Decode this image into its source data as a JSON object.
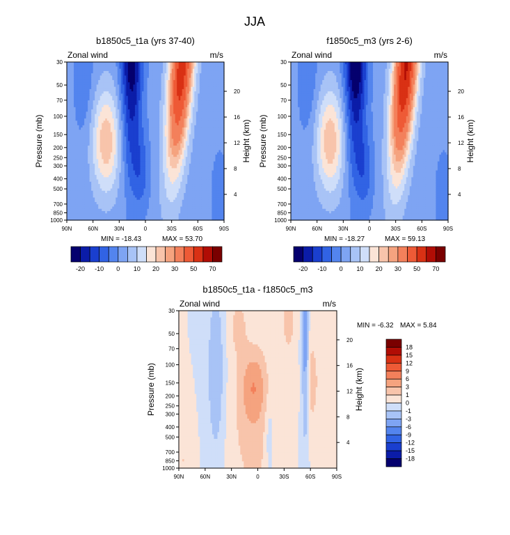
{
  "figure": {
    "title": "JJA",
    "xticklabels": [
      "90N",
      "60N",
      "30N",
      "0",
      "30S",
      "60S",
      "90S"
    ],
    "pressure_ticks": [
      {
        "p": 30,
        "label": "30"
      },
      {
        "p": 50,
        "label": "50"
      },
      {
        "p": 70,
        "label": "70"
      },
      {
        "p": 100,
        "label": "100"
      },
      {
        "p": 150,
        "label": "150"
      },
      {
        "p": 200,
        "label": "200"
      },
      {
        "p": 250,
        "label": "250"
      },
      {
        "p": 300,
        "label": "300"
      },
      {
        "p": 400,
        "label": "400"
      },
      {
        "p": 500,
        "label": "500"
      },
      {
        "p": 700,
        "label": "700"
      },
      {
        "p": 850,
        "label": "850"
      },
      {
        "p": 1000,
        "label": "1000"
      }
    ],
    "height_ticks": [
      {
        "km": 4,
        "label": "4"
      },
      {
        "km": 8,
        "label": "8"
      },
      {
        "km": 12,
        "label": "12"
      },
      {
        "km": 16,
        "label": "16"
      },
      {
        "km": 20,
        "label": "20"
      }
    ],
    "ylabel": "Pressure (mb)",
    "y2label": "Height (km)",
    "left_string": "Zonal wind",
    "right_string": "m/s"
  },
  "chart_data": [
    {
      "type": "heatmap",
      "subtype": "latitude-pressure contour",
      "title": "b1850c5_t1a (yrs 37-40)",
      "variable": "Zonal wind",
      "units": "m/s",
      "min_label": "MIN = -18.43",
      "max_label": "MAX = 53.70",
      "min": -18.43,
      "max": 53.7,
      "x_range": [
        90,
        -90
      ],
      "y_range_mb": [
        1000,
        30
      ],
      "levels": [
        -20,
        -15,
        -10,
        -5,
        0,
        5,
        10,
        15,
        20,
        25,
        30,
        40,
        50,
        60,
        70
      ],
      "colorbar_labels": [
        "-20",
        "-10",
        "0",
        "10",
        "20",
        "30",
        "50",
        "70"
      ],
      "colors": [
        "#05006e",
        "#0b1ca8",
        "#1a3fcf",
        "#3163e4",
        "#5384ee",
        "#7ea4f3",
        "#a8c3f6",
        "#cfdef9",
        "#fbe4d7",
        "#f8c4ab",
        "#f5a37f",
        "#f3805b",
        "#ee5a36",
        "#d93114",
        "#b10d05",
        "#7a0000"
      ]
    },
    {
      "type": "heatmap",
      "subtype": "latitude-pressure contour",
      "title": "f1850c5_m3 (yrs 2-6)",
      "variable": "Zonal wind",
      "units": "m/s",
      "min_label": "MIN = -18.27",
      "max_label": "MAX = 59.13",
      "min": -18.27,
      "max": 59.13,
      "x_range": [
        90,
        -90
      ],
      "y_range_mb": [
        1000,
        30
      ],
      "levels": [
        -20,
        -15,
        -10,
        -5,
        0,
        5,
        10,
        15,
        20,
        25,
        30,
        40,
        50,
        60,
        70
      ],
      "colorbar_labels": [
        "-20",
        "-10",
        "0",
        "10",
        "20",
        "30",
        "50",
        "70"
      ],
      "colors": [
        "#05006e",
        "#0b1ca8",
        "#1a3fcf",
        "#3163e4",
        "#5384ee",
        "#7ea4f3",
        "#a8c3f6",
        "#cfdef9",
        "#fbe4d7",
        "#f8c4ab",
        "#f5a37f",
        "#f3805b",
        "#ee5a36",
        "#d93114",
        "#b10d05",
        "#7a0000"
      ]
    },
    {
      "type": "heatmap",
      "subtype": "latitude-pressure contour (difference)",
      "title": "b1850c5_t1a - f1850c5_m3",
      "variable": "Zonal wind",
      "units": "m/s",
      "min_label": "MIN =  -6.32",
      "max_label": "MAX =  5.84",
      "min": -6.32,
      "max": 5.84,
      "x_range": [
        90,
        -90
      ],
      "y_range_mb": [
        1000,
        30
      ],
      "levels": [
        -18,
        -15,
        -12,
        -9,
        -6,
        -3,
        -1,
        0,
        1,
        3,
        6,
        9,
        12,
        15,
        18
      ],
      "colorbar_labels": [
        "18",
        "15",
        "12",
        "9",
        "6",
        "3",
        "1",
        "0",
        "-1",
        "-3",
        "-6",
        "-9",
        "-12",
        "-15",
        "-18"
      ],
      "colors": [
        "#05006e",
        "#0b1ca8",
        "#1a3fcf",
        "#3163e4",
        "#5384ee",
        "#7ea4f3",
        "#a8c3f6",
        "#cfdef9",
        "#fbe4d7",
        "#f8c4ab",
        "#f5a37f",
        "#f3805b",
        "#ee5a36",
        "#d93114",
        "#b10d05",
        "#7a0000"
      ]
    }
  ]
}
